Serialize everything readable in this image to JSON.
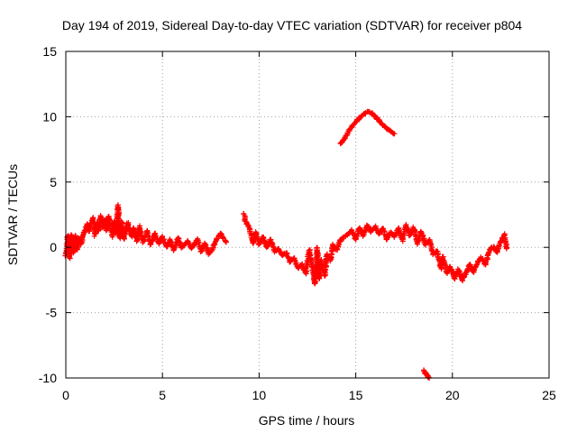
{
  "chart_data": {
    "type": "scatter",
    "title": "Day 194 of 2019, Sidereal Day-to-day VTEC variation (SDTVAR) for receiver p804",
    "xlabel": "GPS time / hours",
    "ylabel": "SDTVAR / TECUs",
    "xlim": [
      0,
      25
    ],
    "ylim": [
      -10,
      15
    ],
    "xticks": [
      "0",
      "5",
      "10",
      "15",
      "20",
      "25"
    ],
    "yticks": [
      "-10",
      "-5",
      "0",
      "5",
      "10",
      "15"
    ],
    "grid": true,
    "marker": "+",
    "colors": {
      "series": "#ff0000",
      "grid": "#a0a0a0",
      "axes": "#000000"
    },
    "series": [
      {
        "name": "SDTVAR",
        "segments": [
          [
            [
              0.0,
              -0.6
            ],
            [
              0.1,
              0.9
            ],
            [
              0.2,
              -0.8
            ],
            [
              0.3,
              1.0
            ],
            [
              0.4,
              -0.4
            ],
            [
              0.5,
              0.9
            ],
            [
              0.6,
              -0.2
            ],
            [
              0.7,
              0.7
            ],
            [
              0.8,
              0.3
            ],
            [
              0.9,
              1.1
            ],
            [
              1.0,
              1.3
            ],
            [
              1.1,
              1.8
            ],
            [
              1.2,
              1.2
            ],
            [
              1.4,
              2.3
            ],
            [
              1.5,
              0.9
            ],
            [
              1.6,
              1.9
            ],
            [
              1.7,
              1.2
            ],
            [
              1.8,
              2.4
            ],
            [
              1.9,
              1.5
            ],
            [
              2.0,
              2.1
            ],
            [
              2.1,
              1.3
            ],
            [
              2.2,
              2.4
            ],
            [
              2.4,
              0.8
            ],
            [
              2.5,
              2.0
            ],
            [
              2.6,
              1.1
            ],
            [
              2.7,
              3.2
            ],
            [
              2.8,
              0.7
            ],
            [
              2.9,
              2.0
            ],
            [
              3.0,
              0.6
            ],
            [
              3.2,
              1.9
            ],
            [
              3.4,
              0.8
            ],
            [
              3.5,
              1.5
            ],
            [
              3.7,
              0.5
            ],
            [
              3.8,
              1.6
            ],
            [
              4.0,
              0.4
            ],
            [
              4.2,
              1.3
            ],
            [
              4.4,
              0.2
            ],
            [
              4.6,
              1.1
            ],
            [
              4.8,
              0.3
            ],
            [
              5.0,
              0.8
            ],
            [
              5.2,
              0.0
            ],
            [
              5.4,
              0.6
            ],
            [
              5.6,
              -0.2
            ],
            [
              5.8,
              0.7
            ],
            [
              6.0,
              0.0
            ],
            [
              6.3,
              0.5
            ],
            [
              6.5,
              -0.1
            ],
            [
              6.8,
              0.6
            ],
            [
              7.0,
              -0.3
            ],
            [
              7.2,
              0.3
            ],
            [
              7.4,
              -0.5
            ],
            [
              7.6,
              -0.1
            ],
            [
              7.8,
              0.6
            ],
            [
              8.0,
              1.1
            ],
            [
              8.1,
              0.8
            ],
            [
              8.3,
              0.4
            ]
          ],
          [
            [
              9.2,
              2.6
            ],
            [
              9.3,
              2.0
            ],
            [
              9.5,
              1.5
            ],
            [
              9.7,
              0.3
            ],
            [
              9.8,
              1.2
            ],
            [
              10.0,
              0.2
            ],
            [
              10.2,
              0.8
            ],
            [
              10.4,
              0.0
            ],
            [
              10.6,
              0.6
            ],
            [
              10.8,
              -0.3
            ],
            [
              11.0,
              -0.1
            ],
            [
              11.2,
              -0.6
            ],
            [
              11.4,
              -0.4
            ],
            [
              11.6,
              -1.1
            ],
            [
              11.8,
              -0.8
            ],
            [
              12.0,
              -1.6
            ],
            [
              12.2,
              -1.3
            ],
            [
              12.4,
              -2.0
            ],
            [
              12.6,
              -0.2
            ],
            [
              12.8,
              -1.9
            ],
            [
              12.9,
              -2.8
            ],
            [
              13.0,
              0.0
            ],
            [
              13.1,
              -2.4
            ],
            [
              13.2,
              -1.0
            ],
            [
              13.4,
              -2.2
            ],
            [
              13.5,
              -0.5
            ],
            [
              13.7,
              -1.0
            ],
            [
              13.8,
              0.2
            ],
            [
              14.0,
              -0.2
            ],
            [
              14.2,
              0.5
            ],
            [
              14.4,
              0.8
            ],
            [
              14.6,
              1.0
            ],
            [
              14.8,
              1.3
            ],
            [
              15.0,
              0.6
            ],
            [
              15.2,
              1.5
            ],
            [
              15.4,
              0.9
            ],
            [
              15.6,
              1.7
            ],
            [
              15.8,
              1.2
            ],
            [
              16.0,
              1.6
            ],
            [
              16.2,
              1.0
            ],
            [
              16.4,
              1.5
            ],
            [
              16.6,
              0.6
            ],
            [
              16.8,
              1.2
            ],
            [
              17.0,
              0.8
            ],
            [
              17.2,
              1.5
            ],
            [
              17.4,
              0.5
            ],
            [
              17.6,
              1.7
            ],
            [
              17.8,
              0.9
            ],
            [
              18.0,
              1.5
            ],
            [
              18.2,
              0.3
            ],
            [
              18.4,
              1.2
            ],
            [
              18.6,
              0.2
            ],
            [
              18.8,
              0.6
            ],
            [
              19.0,
              -0.5
            ],
            [
              19.2,
              -0.3
            ],
            [
              19.4,
              -1.6
            ],
            [
              19.5,
              -0.7
            ],
            [
              19.7,
              -2.0
            ],
            [
              19.9,
              -1.5
            ],
            [
              20.1,
              -2.4
            ],
            [
              20.3,
              -1.7
            ],
            [
              20.5,
              -2.5
            ],
            [
              20.7,
              -2.0
            ],
            [
              20.9,
              -1.3
            ],
            [
              21.1,
              -1.9
            ],
            [
              21.3,
              -1.1
            ],
            [
              21.5,
              -0.8
            ],
            [
              21.7,
              -1.3
            ],
            [
              21.9,
              -0.3
            ],
            [
              22.1,
              0.1
            ],
            [
              22.3,
              -0.4
            ],
            [
              22.5,
              0.5
            ],
            [
              22.7,
              1.0
            ],
            [
              22.8,
              -0.1
            ]
          ],
          [
            [
              14.2,
              7.9
            ],
            [
              14.4,
              8.3
            ],
            [
              14.6,
              8.8
            ],
            [
              14.8,
              9.2
            ],
            [
              15.0,
              9.6
            ],
            [
              15.2,
              9.9
            ],
            [
              15.4,
              10.2
            ],
            [
              15.6,
              10.4
            ],
            [
              15.8,
              10.3
            ],
            [
              16.0,
              10.0
            ],
            [
              16.2,
              9.7
            ],
            [
              16.4,
              9.4
            ],
            [
              16.6,
              9.1
            ],
            [
              16.8,
              8.9
            ],
            [
              17.0,
              8.7
            ]
          ],
          [
            [
              18.5,
              -9.4
            ],
            [
              18.6,
              -9.6
            ],
            [
              18.7,
              -9.8
            ],
            [
              18.8,
              -10.0
            ]
          ]
        ]
      }
    ]
  }
}
